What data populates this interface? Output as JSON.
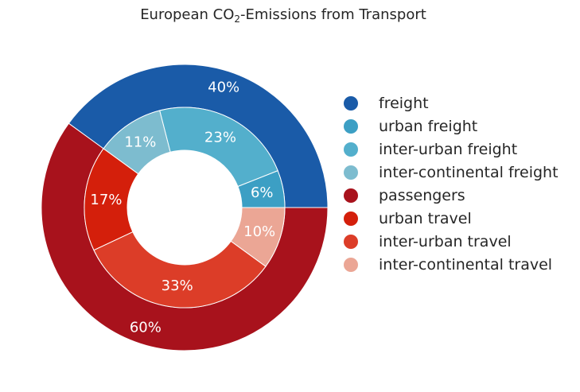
{
  "chart_data": {
    "type": "pie",
    "variant": "nested-donut",
    "title_parts": [
      "European CO",
      "2",
      "-Emissions from Transport"
    ],
    "outer": [
      {
        "label": "freight",
        "value": 40,
        "display": "40%",
        "color": "#1a5ba8"
      },
      {
        "label": "passengers",
        "value": 60,
        "display": "60%",
        "color": "#a8121c"
      }
    ],
    "inner": [
      {
        "label": "urban freight",
        "value": 6,
        "display": "6%",
        "color": "#3c9fc4"
      },
      {
        "label": "inter-urban freight",
        "value": 23,
        "display": "23%",
        "color": "#53afcc"
      },
      {
        "label": "inter-continental freight",
        "value": 11,
        "display": "11%",
        "color": "#7dbccf"
      },
      {
        "label": "urban travel",
        "value": 17,
        "display": "17%",
        "color": "#d41f0b"
      },
      {
        "label": "inter-urban travel",
        "value": 33,
        "display": "33%",
        "color": "#dc3d28"
      },
      {
        "label": "inter-continental travel",
        "value": 10,
        "display": "10%",
        "color": "#eba695"
      }
    ],
    "legend": [
      {
        "label": "freight",
        "color": "#1a5ba8"
      },
      {
        "label": "urban freight",
        "color": "#3c9fc4"
      },
      {
        "label": "inter-urban freight",
        "color": "#53afcc"
      },
      {
        "label": "inter-continental freight",
        "color": "#7dbccf"
      },
      {
        "label": "passengers",
        "color": "#a8121c"
      },
      {
        "label": "urban travel",
        "color": "#d41f0b"
      },
      {
        "label": "inter-urban travel",
        "color": "#dc3d28"
      },
      {
        "label": "inter-continental travel",
        "color": "#eba695"
      }
    ],
    "start_angle_deg": 0,
    "direction": "counterclockwise",
    "legend_position": "right"
  }
}
